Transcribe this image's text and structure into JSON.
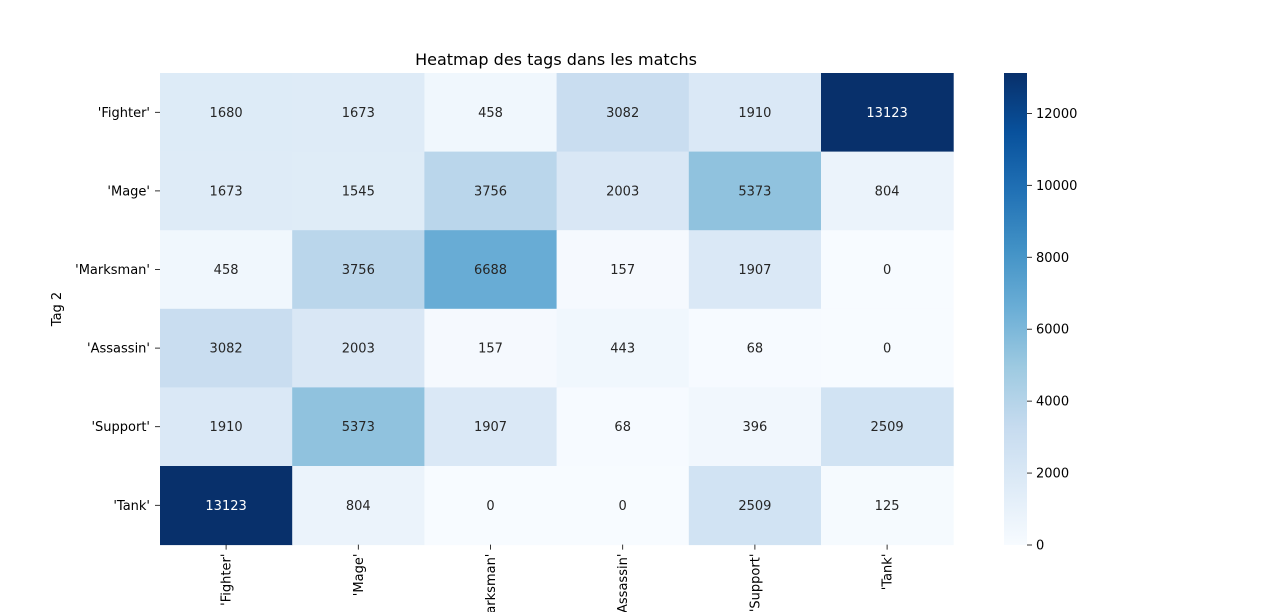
{
  "chart_data": {
    "type": "heatmap",
    "title": "Heatmap des tags dans les matchs",
    "ylabel": "Tag 2",
    "xlabel": "",
    "row_labels": [
      "'Fighter'",
      "'Mage'",
      "'Marksman'",
      "'Assassin'",
      "'Support'",
      "'Tank'"
    ],
    "col_labels": [
      "'Fighter'",
      "'Mage'",
      "'Marksman'",
      "'Assassin'",
      "'Support'",
      "'Tank'"
    ],
    "values": [
      [
        1680,
        1673,
        458,
        3082,
        1910,
        13123
      ],
      [
        1673,
        1545,
        3756,
        2003,
        5373,
        804
      ],
      [
        458,
        3756,
        6688,
        157,
        1907,
        0
      ],
      [
        3082,
        2003,
        157,
        443,
        68,
        0
      ],
      [
        1910,
        5373,
        1907,
        68,
        396,
        2509
      ],
      [
        13123,
        804,
        0,
        0,
        2509,
        125
      ]
    ],
    "colorbar": {
      "min": 0,
      "max": 13123,
      "ticks": [
        0,
        2000,
        4000,
        6000,
        8000,
        10000,
        12000
      ]
    },
    "colormap": "Blues",
    "colors": [
      "#f7fbff",
      "#deebf7",
      "#c6dbef",
      "#9ecae1",
      "#6baed6",
      "#4292c6",
      "#2171b5",
      "#08519c",
      "#08306b"
    ]
  }
}
